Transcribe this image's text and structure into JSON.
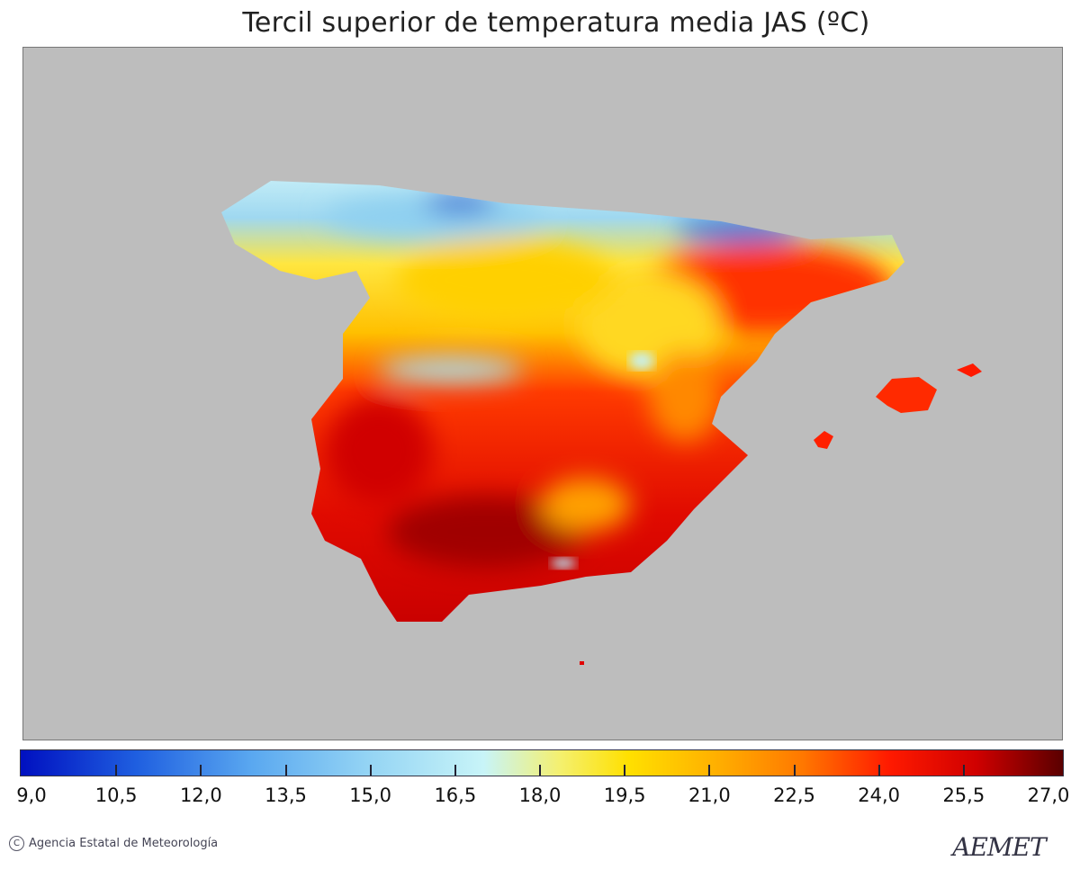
{
  "title": "Tercil superior de temperatura media JAS (ºC)",
  "map": {
    "background_color": "#bdbdbd",
    "region": "Península Ibérica e Islas Baleares"
  },
  "colorbar": {
    "min": 9.0,
    "max": 27.0,
    "tick_labels": [
      "9,0",
      "10,5",
      "12,0",
      "13,5",
      "15,0",
      "16,5",
      "18,0",
      "19,5",
      "21,0",
      "22,5",
      "24,0",
      "25,5",
      "27,0"
    ],
    "tick_values": [
      9.0,
      10.5,
      12.0,
      13.5,
      15.0,
      16.5,
      18.0,
      19.5,
      21.0,
      22.5,
      24.0,
      25.5,
      27.0
    ],
    "stops": [
      {
        "value": 9.0,
        "color": "#0010c0"
      },
      {
        "value": 11.0,
        "color": "#1f5fe0"
      },
      {
        "value": 13.0,
        "color": "#5aa8f0"
      },
      {
        "value": 15.0,
        "color": "#94d4f4"
      },
      {
        "value": 17.0,
        "color": "#c8f4f8"
      },
      {
        "value": 18.3,
        "color": "#f4f070"
      },
      {
        "value": 19.5,
        "color": "#ffe000"
      },
      {
        "value": 21.0,
        "color": "#ffb000"
      },
      {
        "value": 22.5,
        "color": "#ff7800"
      },
      {
        "value": 24.0,
        "color": "#ff1a00"
      },
      {
        "value": 25.5,
        "color": "#d00000"
      },
      {
        "value": 27.0,
        "color": "#5a0000"
      }
    ]
  },
  "footer": {
    "copyright_symbol": "C",
    "credit": "Agencia Estatal de Meteorología",
    "logo_text": "AEMET"
  }
}
